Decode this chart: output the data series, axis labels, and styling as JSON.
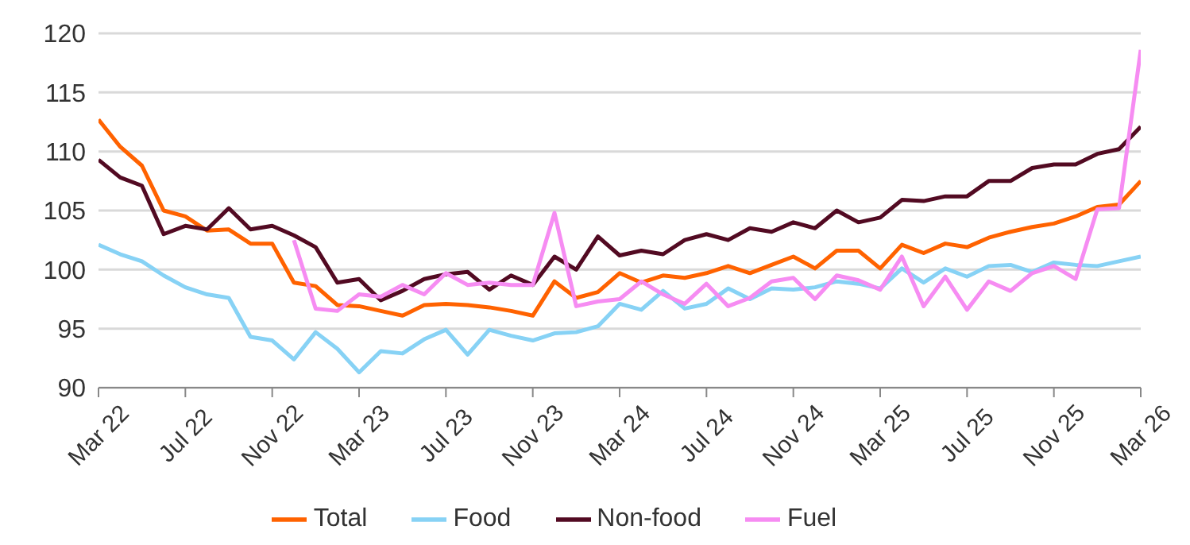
{
  "chart_data": {
    "type": "line",
    "categories": [
      "Mar 22",
      null,
      null,
      null,
      "Jul 22",
      null,
      null,
      null,
      "Nov 22",
      null,
      null,
      null,
      "Mar 23",
      null,
      null,
      null,
      "Jul 23",
      null,
      null,
      null,
      "Nov 23",
      null,
      null,
      null,
      "Mar 24",
      null,
      null,
      null,
      "Jul 24",
      null,
      null,
      null,
      "Nov 24",
      null,
      null,
      null,
      "Mar 25",
      null,
      null,
      null,
      "Jul 25",
      null,
      null,
      null,
      "Nov 25",
      null,
      null,
      null,
      "Mar 26"
    ],
    "series": [
      {
        "name": "Total",
        "color": "#ff6200",
        "values": [
          112.7,
          110.4,
          108.8,
          105,
          104.5,
          103.3,
          103.4,
          102.2,
          102.2,
          98.9,
          98.6,
          97,
          96.9,
          96.5,
          96.1,
          97,
          97.1,
          97,
          96.8,
          96.5,
          96.1,
          99,
          97.6,
          98.1,
          99.7,
          98.9,
          99.5,
          99.3,
          99.7,
          100.3,
          99.7,
          100.4,
          101.1,
          100.1,
          101.6,
          101.6,
          100.1,
          102.1,
          101.4,
          102.2,
          101.9,
          102.7,
          103.2,
          103.6,
          103.9,
          104.5,
          105.3,
          105.5,
          107.5
        ]
      },
      {
        "name": "Food",
        "color": "#87d2f5",
        "values": [
          102.1,
          101.3,
          100.7,
          99.5,
          98.5,
          97.9,
          97.6,
          94.3,
          94,
          92.4,
          94.7,
          93.3,
          91.3,
          93.1,
          92.9,
          94.1,
          94.9,
          92.8,
          94.9,
          94.4,
          94,
          94.6,
          94.7,
          95.2,
          97.1,
          96.6,
          98.2,
          96.7,
          97.1,
          98.4,
          97.5,
          98.4,
          98.3,
          98.5,
          99,
          98.8,
          98.4,
          100.1,
          98.9,
          100.1,
          99.4,
          100.3,
          100.4,
          99.8,
          100.6,
          100.4,
          100.3,
          100.7,
          101.1
        ]
      },
      {
        "name": "Non-food",
        "color": "#520a22",
        "values": [
          109.3,
          107.8,
          107.1,
          103,
          103.7,
          103.4,
          105.2,
          103.4,
          103.7,
          102.9,
          101.9,
          98.9,
          99.2,
          97.4,
          98.2,
          99.2,
          99.6,
          99.8,
          98.3,
          99.5,
          98.7,
          101.1,
          100,
          102.8,
          101.2,
          101.6,
          101.3,
          102.5,
          103,
          102.5,
          103.5,
          103.2,
          104,
          103.5,
          105,
          104,
          104.4,
          105.9,
          105.8,
          106.2,
          106.2,
          107.5,
          107.5,
          108.6,
          108.9,
          108.9,
          109.8,
          110.2,
          112.1
        ]
      },
      {
        "name": "Fuel",
        "color": "#f68cf2",
        "values": [
          null,
          null,
          null,
          null,
          null,
          null,
          null,
          null,
          null,
          102.5,
          96.7,
          96.5,
          97.9,
          97.7,
          98.7,
          97.9,
          99.7,
          98.7,
          98.9,
          98.7,
          98.7,
          104.8,
          96.9,
          97.3,
          97.5,
          99,
          97.9,
          97.1,
          98.8,
          96.9,
          97.6,
          99,
          99.3,
          97.5,
          99.5,
          99.1,
          98.3,
          101.1,
          96.9,
          99.4,
          96.6,
          99,
          98.2,
          99.7,
          100.3,
          99.2,
          105.1,
          105.2,
          118.6
        ]
      }
    ],
    "ylim": [
      90,
      120
    ],
    "yticks": [
      90,
      95,
      100,
      105,
      110,
      115,
      120
    ],
    "grid": "y",
    "legend": "bottom",
    "marker": "none",
    "line_style": "solid"
  }
}
